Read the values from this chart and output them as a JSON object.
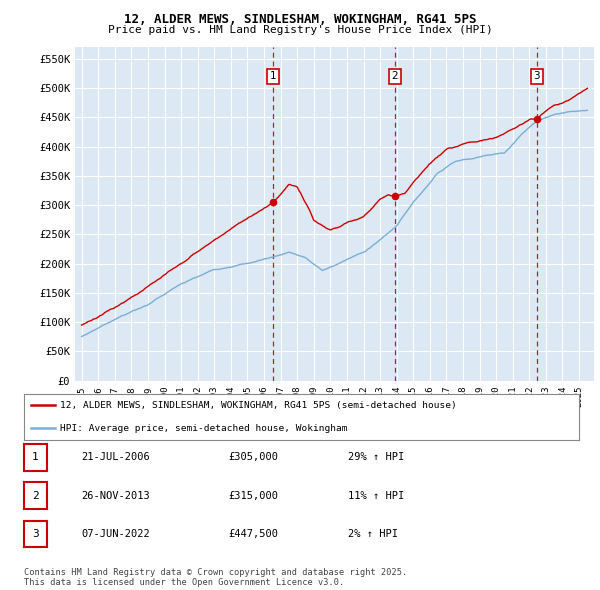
{
  "title_line1": "12, ALDER MEWS, SINDLESHAM, WOKINGHAM, RG41 5PS",
  "title_line2": "Price paid vs. HM Land Registry's House Price Index (HPI)",
  "yticks": [
    0,
    50000,
    100000,
    150000,
    200000,
    250000,
    300000,
    350000,
    400000,
    450000,
    500000,
    550000
  ],
  "ytick_labels": [
    "£0",
    "£50K",
    "£100K",
    "£150K",
    "£200K",
    "£250K",
    "£300K",
    "£350K",
    "£400K",
    "£450K",
    "£500K",
    "£550K"
  ],
  "ymax": 570000,
  "ymin": 0,
  "plot_bg_color": "#dce9f5",
  "grid_color": "#ffffff",
  "red_color": "#cc0000",
  "blue_color": "#7aaed4",
  "sale_year_floats": [
    2006.554,
    2013.899,
    2022.438
  ],
  "sale_prices": [
    305000,
    315000,
    447500
  ],
  "sale_labels": [
    "1",
    "2",
    "3"
  ],
  "legend_line1": "12, ALDER MEWS, SINDLESHAM, WOKINGHAM, RG41 5PS (semi-detached house)",
  "legend_line2": "HPI: Average price, semi-detached house, Wokingham",
  "table_rows": [
    {
      "label": "1",
      "date": "21-JUL-2006",
      "price": "£305,000",
      "hpi": "29% ↑ HPI"
    },
    {
      "label": "2",
      "date": "26-NOV-2013",
      "price": "£315,000",
      "hpi": "11% ↑ HPI"
    },
    {
      "label": "3",
      "date": "07-JUN-2022",
      "price": "£447,500",
      "hpi": "2% ↑ HPI"
    }
  ],
  "footnote": "Contains HM Land Registry data © Crown copyright and database right 2025.\nThis data is licensed under the Open Government Licence v3.0."
}
